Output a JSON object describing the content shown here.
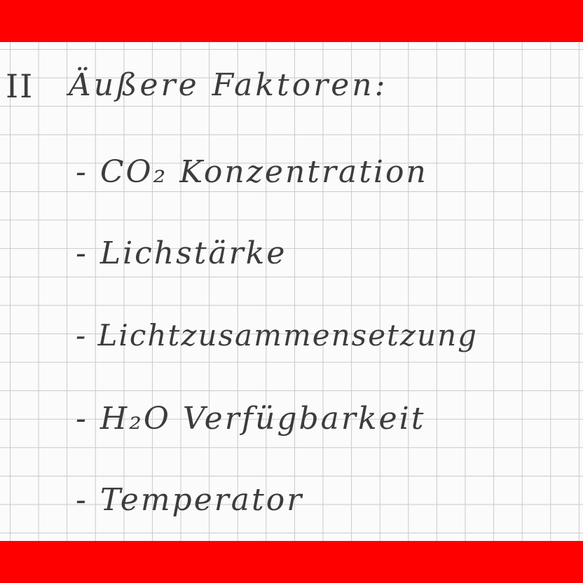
{
  "notes": {
    "section_numeral": "II",
    "heading": "Äußere Faktoren:",
    "items": [
      "- CO₂ Konzentration",
      "- Lichstärke",
      "- Lichtzusammensetzung",
      "- H₂O Verfügbarkeit",
      "- Temperator"
    ]
  },
  "colors": {
    "border_band": "#ff0000",
    "ink": "#3c3c3c",
    "grid_line": "#c9c9c9",
    "paper": "#fbfbfb"
  }
}
